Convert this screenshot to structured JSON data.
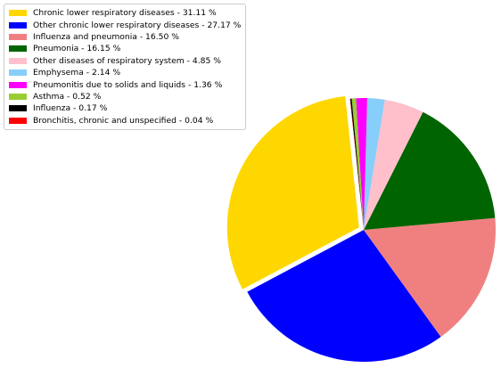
{
  "chart_data": {
    "type": "pie",
    "start_angle_deg": 96,
    "direction": "counterclockwise",
    "explode": [
      0.04,
      0,
      0,
      0,
      0,
      0,
      0,
      0,
      0,
      0
    ],
    "legend_position": "top-left",
    "slices": [
      {
        "label": "Chronic lower respiratory diseases  - 31.11 %",
        "value": 31.11,
        "color": "#FFD700"
      },
      {
        "label": "Other chronic lower respiratory diseases  - 27.17 %",
        "value": 27.17,
        "color": "#0000FF"
      },
      {
        "label": "Influenza and pneumonia  - 16.50 %",
        "value": 16.5,
        "color": "#F08080"
      },
      {
        "label": "Pneumonia  - 16.15 %",
        "value": 16.15,
        "color": "#006400"
      },
      {
        "label": "Other diseases of respiratory system  - 4.85 %",
        "value": 4.85,
        "color": "#FFC0CB"
      },
      {
        "label": "Emphysema  - 2.14 %",
        "value": 2.14,
        "color": "#87CEFA"
      },
      {
        "label": "Pneumonitis due to solids and liquids  - 1.36 %",
        "value": 1.36,
        "color": "#FF00FF"
      },
      {
        "label": "Asthma  - 0.52 %",
        "value": 0.52,
        "color": "#9ACD32"
      },
      {
        "label": "Influenza  - 0.17 %",
        "value": 0.17,
        "color": "#000000"
      },
      {
        "label": "Bronchitis, chronic and unspecified  - 0.04 %",
        "value": 0.04,
        "color": "#FF0000"
      }
    ]
  }
}
